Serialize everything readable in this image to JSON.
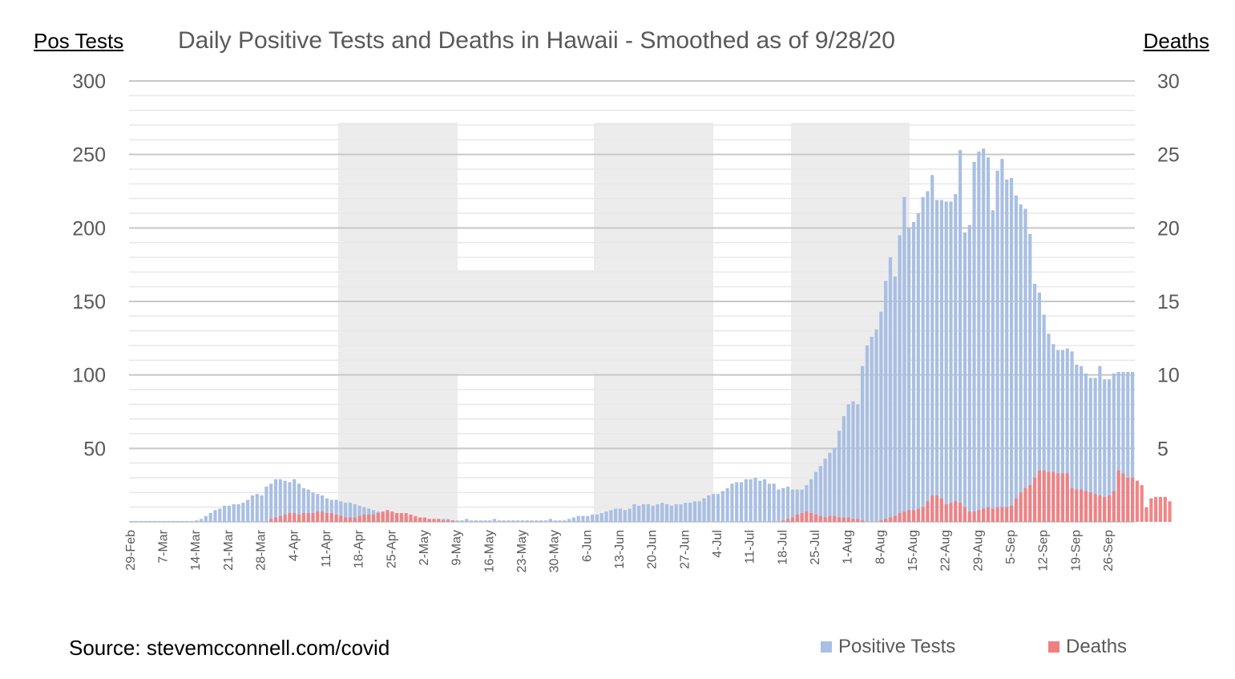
{
  "chart_data": {
    "type": "bar",
    "title": "Daily Positive Tests and Deaths in Hawaii - Smoothed as of 9/28/20",
    "ylabel": "Pos Tests",
    "y2label": "Deaths",
    "ylim": [
      0,
      300
    ],
    "y2lim": [
      0,
      30
    ],
    "y_ticks": [
      50,
      100,
      150,
      200,
      250,
      300
    ],
    "y2_ticks": [
      5,
      10,
      15,
      20,
      25,
      30
    ],
    "x_tick_labels": [
      "29-Feb",
      "7-Mar",
      "14-Mar",
      "21-Mar",
      "28-Mar",
      "4-Apr",
      "11-Apr",
      "18-Apr",
      "25-Apr",
      "2-May",
      "9-May",
      "16-May",
      "23-May",
      "30-May",
      "6-Jun",
      "13-Jun",
      "20-Jun",
      "27-Jun",
      "4-Jul",
      "11-Jul",
      "18-Jul",
      "25-Jul",
      "1-Aug",
      "8-Aug",
      "15-Aug",
      "22-Aug",
      "29-Aug",
      "5-Sep",
      "12-Sep",
      "19-Sep",
      "26-Sep"
    ],
    "watermark": "H",
    "series": [
      {
        "name": "Positive Tests",
        "axis": "left",
        "color": "#a9bfe3",
        "values": [
          0,
          0,
          0,
          0,
          0,
          0,
          0,
          0,
          0,
          0,
          0,
          0,
          0,
          0,
          1,
          2,
          4,
          6,
          8,
          9,
          11,
          11,
          12,
          12,
          13,
          15,
          18,
          19,
          18,
          24,
          26,
          29,
          29,
          28,
          27,
          29,
          26,
          23,
          22,
          20,
          19,
          18,
          16,
          15,
          15,
          14,
          13,
          13,
          12,
          11,
          10,
          9,
          8,
          7,
          6,
          6,
          5,
          5,
          4,
          3,
          3,
          2,
          2,
          2,
          2,
          2,
          2,
          2,
          2,
          1,
          1,
          1,
          2,
          1,
          1,
          1,
          1,
          1,
          2,
          1,
          1,
          1,
          1,
          1,
          1,
          1,
          1,
          1,
          1,
          1,
          2,
          1,
          1,
          1,
          2,
          3,
          4,
          4,
          4,
          5,
          5,
          6,
          7,
          8,
          9,
          9,
          8,
          9,
          12,
          11,
          12,
          12,
          11,
          12,
          13,
          12,
          11,
          12,
          12,
          13,
          13,
          14,
          14,
          16,
          18,
          19,
          19,
          21,
          23,
          26,
          27,
          27,
          29,
          29,
          30,
          28,
          29,
          26,
          26,
          22,
          23,
          24,
          22,
          22,
          22,
          25,
          29,
          34,
          38,
          43,
          47,
          50,
          62,
          72,
          80,
          82,
          80,
          106,
          120,
          126,
          131,
          143,
          164,
          180,
          167,
          195,
          221,
          200,
          204,
          210,
          221,
          225,
          236,
          219,
          219,
          218,
          218,
          223,
          253,
          197,
          202,
          245,
          252,
          254,
          248,
          212,
          239,
          247,
          233,
          234,
          222,
          216,
          213,
          196,
          162,
          156,
          141,
          128,
          121,
          117,
          117,
          118,
          116,
          107,
          106,
          101,
          98,
          98,
          106,
          97,
          97,
          101,
          102,
          102,
          102,
          102
        ]
      },
      {
        "name": "Deaths",
        "axis": "right",
        "color": "#f08080",
        "values": [
          0,
          0,
          0,
          0,
          0,
          0,
          0,
          0,
          0,
          0,
          0,
          0,
          0,
          0,
          0,
          0,
          0,
          0,
          0,
          0,
          0,
          0,
          0,
          0,
          0,
          0,
          0,
          0,
          0,
          0,
          0.2,
          0.3,
          0.4,
          0.5,
          0.6,
          0.6,
          0.5,
          0.6,
          0.6,
          0.6,
          0.7,
          0.7,
          0.6,
          0.6,
          0.5,
          0.4,
          0.3,
          0.3,
          0.3,
          0.4,
          0.5,
          0.5,
          0.5,
          0.6,
          0.7,
          0.8,
          0.7,
          0.6,
          0.6,
          0.6,
          0.5,
          0.4,
          0.3,
          0.3,
          0.2,
          0.2,
          0.2,
          0.1,
          0.1,
          0.1,
          0,
          0,
          0,
          0,
          0,
          0,
          0,
          0,
          0,
          0,
          0,
          0,
          0,
          0,
          0,
          0,
          0,
          0,
          0,
          0,
          0,
          0,
          0,
          0,
          0,
          0,
          0,
          0,
          0,
          0,
          0,
          0,
          0,
          0,
          0,
          0,
          0,
          0,
          0,
          0,
          0,
          0,
          0,
          0,
          0,
          0,
          0,
          0,
          0,
          0,
          0,
          0,
          0,
          0,
          0,
          0,
          0,
          0,
          0,
          0,
          0,
          0,
          0,
          0,
          0,
          0,
          0,
          0,
          0,
          0,
          0.1,
          0.2,
          0.3,
          0.5,
          0.6,
          0.7,
          0.6,
          0.5,
          0.4,
          0.3,
          0.4,
          0.4,
          0.3,
          0.3,
          0.3,
          0.2,
          0.2,
          0.1,
          0,
          0,
          0,
          0.1,
          0.2,
          0.3,
          0.4,
          0.6,
          0.7,
          0.8,
          0.8,
          0.9,
          1,
          1.4,
          1.8,
          1.8,
          1.6,
          1.2,
          1.3,
          1.4,
          1.3,
          1,
          0.7,
          0.7,
          0.8,
          0.9,
          1,
          0.9,
          1,
          1,
          1,
          1.1,
          1.6,
          2,
          2.3,
          2.5,
          3,
          3.5,
          3.5,
          3.4,
          3.4,
          3.3,
          3.3,
          3.3,
          2.3,
          2.2,
          2.2,
          2.1,
          2,
          1.9,
          1.8,
          1.7,
          1.8,
          2.1,
          3.5,
          3.3,
          3.0,
          3.0,
          2.8,
          2.5,
          1.0,
          1.6,
          1.7,
          1.7,
          1.7,
          1.4
        ]
      }
    ]
  },
  "source_text": "Source: stevemcconnell.com/covid"
}
